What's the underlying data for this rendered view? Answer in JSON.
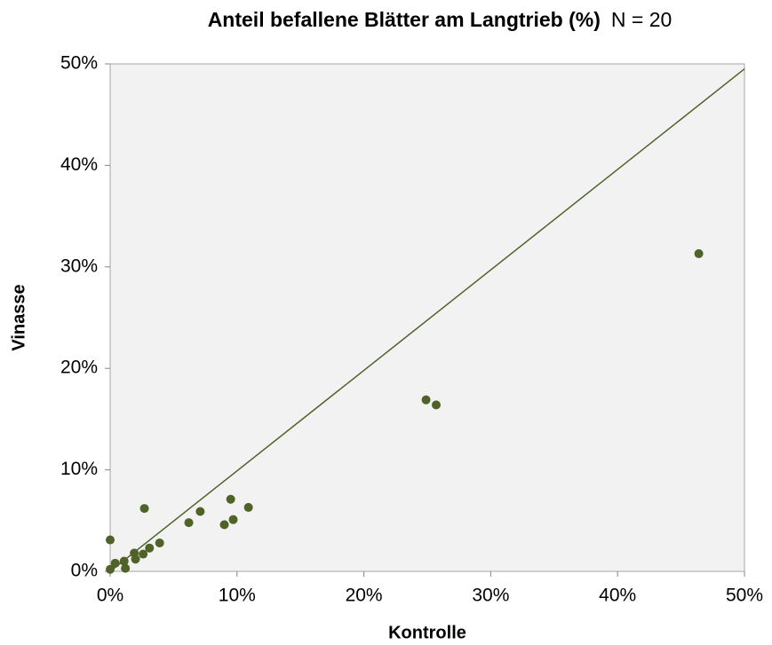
{
  "chart_data": {
    "type": "scatter",
    "title": "Anteil befallene Blätter am Langtrieb (%)",
    "subtitle": "N = 20",
    "x_label": "Kontrolle",
    "y_label": "Vinasse",
    "color": "#4f6228",
    "x": [
      0,
      0,
      0.4,
      1.1,
      1.2,
      1.9,
      2.0,
      2.6,
      2.7,
      3.1,
      3.9,
      6.2,
      7.1,
      9.0,
      9.5,
      9.7,
      10.9,
      24.9,
      25.7,
      46.4
    ],
    "values": [
      3.1,
      0.2,
      0.8,
      1.0,
      0.3,
      1.8,
      1.2,
      1.7,
      6.2,
      2.3,
      2.8,
      4.8,
      5.9,
      4.6,
      7.1,
      5.1,
      6.3,
      16.9,
      16.4,
      31.3
    ],
    "line": {
      "x": [
        0,
        50
      ],
      "y": [
        0,
        49.5
      ]
    },
    "xlim": [
      0,
      50
    ],
    "ylim": [
      0,
      50
    ],
    "xticks": [
      {
        "value": 0,
        "label": "0%"
      },
      {
        "value": 10,
        "label": "10%"
      },
      {
        "value": 20,
        "label": "20%"
      },
      {
        "value": 30,
        "label": "30%"
      },
      {
        "value": 40,
        "label": "40%"
      },
      {
        "value": 50,
        "label": "50%"
      }
    ],
    "yticks": [
      {
        "value": 0,
        "label": "0%"
      },
      {
        "value": 10,
        "label": "10%"
      },
      {
        "value": 20,
        "label": "20%"
      },
      {
        "value": 30,
        "label": "30%"
      },
      {
        "value": 40,
        "label": "40%"
      },
      {
        "value": 50,
        "label": "50%"
      }
    ]
  }
}
